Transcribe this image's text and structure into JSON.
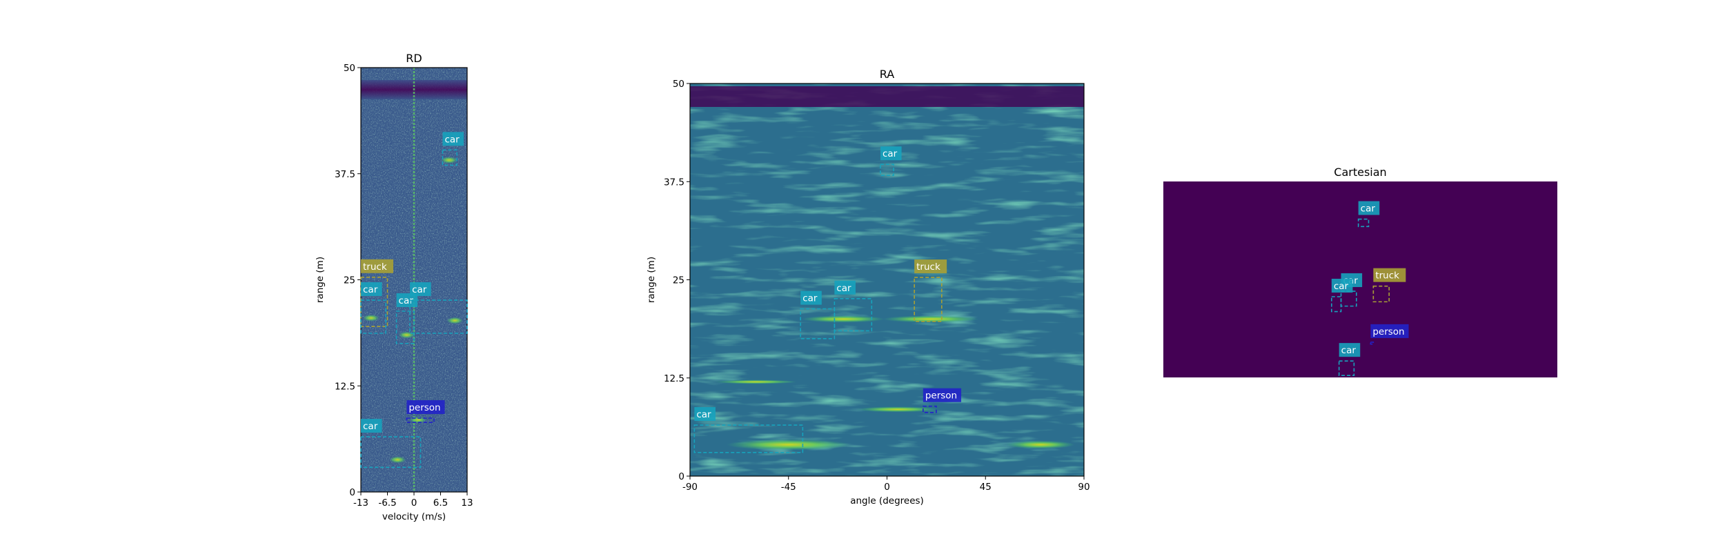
{
  "colors": {
    "car": "#17a2bc",
    "truck": "#a9a135",
    "person": "#2222c8",
    "heat_low": "#440154",
    "heat_mid": "#31688e",
    "heat_high": "#b5de2b",
    "cartesian_bg": "#440154"
  },
  "chart_data": [
    {
      "type": "heatmap",
      "title": "RD",
      "xlabel": "velocity (m/s)",
      "ylabel": "range (m)",
      "xlim": [
        -13,
        13
      ],
      "ylim": [
        0,
        50
      ],
      "xticks": [
        "-13",
        "-6.5",
        "0",
        "6.5",
        "13"
      ],
      "xtick_values": [
        -13,
        -6.5,
        0,
        6.5,
        13
      ],
      "yticks": [
        "0",
        "12.5",
        "25",
        "37.5",
        "50"
      ],
      "ytick_values": [
        0,
        12.5,
        25,
        37.5,
        50
      ],
      "detections": [
        {
          "label": "car",
          "cls": "car",
          "x0": 7,
          "x1": 10.5,
          "y0": 38.5,
          "y1": 40.3
        },
        {
          "label": "truck",
          "cls": "truck",
          "x0": -13,
          "x1": -6.5,
          "y0": 19.5,
          "y1": 25.3
        },
        {
          "label": "car",
          "cls": "car",
          "x0": -13,
          "x1": -6.9,
          "y0": 18.7,
          "y1": 22.6
        },
        {
          "label": "car",
          "cls": "car",
          "x0": -4.3,
          "x1": 0,
          "y0": 17.5,
          "y1": 21.3
        },
        {
          "label": "car",
          "cls": "car",
          "x0": -1,
          "x1": 13,
          "y0": 18.7,
          "y1": 22.6
        },
        {
          "label": "person",
          "cls": "person",
          "x0": -1.8,
          "x1": 4.9,
          "y0": 8.2,
          "y1": 8.7
        },
        {
          "label": "car",
          "cls": "car",
          "x0": -13,
          "x1": 1.6,
          "y0": 2.9,
          "y1": 6.5
        }
      ]
    },
    {
      "type": "heatmap",
      "title": "RA",
      "xlabel": "angle (degrees)",
      "ylabel": "range (m)",
      "xlim": [
        -90,
        90
      ],
      "ylim": [
        0,
        50
      ],
      "xticks": [
        "-90",
        "-45",
        "0",
        "45",
        "90"
      ],
      "xtick_values": [
        -90,
        -45,
        0,
        45,
        90
      ],
      "yticks": [
        "0",
        "12.5",
        "25",
        "37.5",
        "50"
      ],
      "ytick_values": [
        0,
        12.5,
        25,
        37.5,
        50
      ],
      "detections": [
        {
          "label": "car",
          "cls": "car",
          "x0": -3,
          "x1": 3,
          "y0": 38.3,
          "y1": 39.7
        },
        {
          "label": "truck",
          "cls": "truck",
          "x0": 12.5,
          "x1": 25,
          "y0": 19.7,
          "y1": 25.3
        },
        {
          "label": "car",
          "cls": "car",
          "x0": -39.5,
          "x1": -24,
          "y0": 17.5,
          "y1": 21.3
        },
        {
          "label": "car",
          "cls": "car",
          "x0": -24,
          "x1": -7,
          "y0": 18.5,
          "y1": 22.6
        },
        {
          "label": "person",
          "cls": "person",
          "x0": 16.5,
          "x1": 22.5,
          "y0": 8.1,
          "y1": 8.9
        },
        {
          "label": "car",
          "cls": "car",
          "x0": -88,
          "x1": -38.5,
          "y0": 3,
          "y1": 6.5
        }
      ]
    },
    {
      "type": "heatmap",
      "title": "Cartesian",
      "xlabel": "",
      "ylabel": "",
      "xlim": [
        -50,
        50
      ],
      "ylim": [
        0,
        50
      ],
      "detections": [
        {
          "label": "car",
          "cls": "car",
          "x0": -0.5,
          "x1": 2.1,
          "y0": 38.5,
          "y1": 40.4
        },
        {
          "label": "truck",
          "cls": "truck",
          "x0": 3.3,
          "x1": 7.3,
          "y0": 19.3,
          "y1": 23.3
        },
        {
          "label": "car",
          "cls": "car",
          "x0": -4.9,
          "x1": -1,
          "y0": 18.2,
          "y1": 22
        },
        {
          "label": "car",
          "cls": "car",
          "x0": -7.3,
          "x1": -4.9,
          "y0": 16.8,
          "y1": 20.6
        },
        {
          "label": "person",
          "cls": "person",
          "x0": 2.6,
          "x1": 3.3,
          "y0": 8.5,
          "y1": 9
        },
        {
          "label": "car",
          "cls": "car",
          "x0": -5.4,
          "x1": -1.6,
          "y0": 0.5,
          "y1": 4.2
        }
      ]
    }
  ]
}
